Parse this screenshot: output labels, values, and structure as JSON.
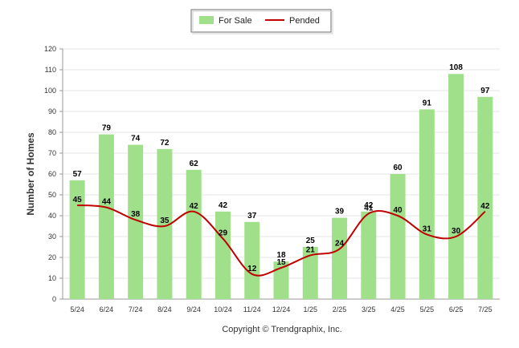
{
  "chart_data": {
    "type": "bar",
    "categories": [
      "5/24",
      "6/24",
      "7/24",
      "8/24",
      "9/24",
      "10/24",
      "11/24",
      "12/24",
      "1/25",
      "2/25",
      "3/25",
      "4/25",
      "5/25",
      "6/25",
      "7/25"
    ],
    "series": [
      {
        "name": "For Sale",
        "kind": "bar",
        "color": "#a0e08a",
        "values": [
          57,
          79,
          74,
          72,
          62,
          42,
          37,
          18,
          25,
          39,
          42,
          60,
          91,
          108,
          97
        ]
      },
      {
        "name": "Pended",
        "kind": "line",
        "color": "#c00000",
        "values": [
          45,
          44,
          38,
          35,
          42,
          29,
          12,
          15,
          21,
          24,
          41,
          40,
          31,
          30,
          42
        ]
      }
    ],
    "ylabel": "Number of Homes",
    "xlabel": "",
    "ylim": [
      0,
      120
    ],
    "yticks": [
      0,
      10,
      20,
      30,
      40,
      50,
      60,
      70,
      80,
      90,
      100,
      110,
      120
    ],
    "grid": true,
    "legend_position": "top-center"
  },
  "footer": {
    "copyright": "Copyright © Trendgraphix, Inc."
  }
}
